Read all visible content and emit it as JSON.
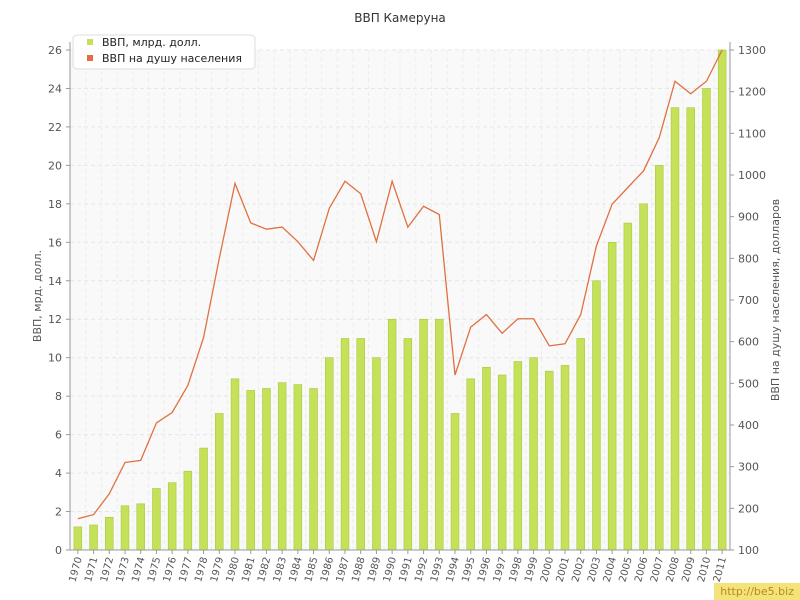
{
  "watermark": "http://be5.biz",
  "chart_data": {
    "type": "bar+line",
    "title": "ВВП Камеруна",
    "ylabel_left": "ВВП, мрд. долл.",
    "ylabel_right": "ВВП на душу населения, долларов",
    "ylim_left": [
      0,
      26
    ],
    "ylim_right": [
      100,
      1300
    ],
    "yticks_left": [
      0,
      2,
      4,
      6,
      8,
      10,
      12,
      14,
      16,
      18,
      20,
      22,
      24,
      26
    ],
    "yticks_right": [
      100,
      200,
      300,
      400,
      500,
      600,
      700,
      800,
      900,
      1000,
      1100,
      1200,
      1300
    ],
    "legend_position": "top-left",
    "grid": true,
    "colors": {
      "bars": "#c5e15a",
      "bars_edge": "#a9c83c",
      "line": "#e07040"
    },
    "categories": [
      "1970",
      "1971",
      "1972",
      "1973",
      "1974",
      "1975",
      "1976",
      "1977",
      "1978",
      "1979",
      "1980",
      "1981",
      "1982",
      "1983",
      "1984",
      "1985",
      "1986",
      "1987",
      "1988",
      "1989",
      "1990",
      "1991",
      "1992",
      "1993",
      "1994",
      "1995",
      "1996",
      "1997",
      "1998",
      "1999",
      "2000",
      "2001",
      "2002",
      "2003",
      "2004",
      "2005",
      "2006",
      "2007",
      "2008",
      "2009",
      "2010",
      "2011"
    ],
    "series": [
      {
        "name": "ВВП, млрд. долл.",
        "type": "bar",
        "axis": "left",
        "values": [
          1.2,
          1.3,
          1.7,
          2.3,
          2.4,
          3.2,
          3.5,
          4.1,
          5.3,
          7.1,
          8.9,
          8.3,
          8.4,
          8.7,
          8.6,
          8.4,
          10,
          11,
          11,
          10,
          12,
          11,
          12,
          12,
          7.1,
          8.9,
          9.5,
          9.1,
          9.8,
          10,
          9.3,
          9.6,
          11,
          14,
          16,
          17,
          18,
          20,
          23,
          23,
          24,
          26
        ]
      },
      {
        "name": "ВВП на душу населения",
        "type": "line",
        "axis": "right",
        "values": [
          175,
          185,
          235,
          310,
          315,
          405,
          430,
          495,
          610,
          800,
          980,
          885,
          870,
          875,
          840,
          795,
          920,
          985,
          955,
          840,
          985,
          875,
          925,
          905,
          520,
          635,
          665,
          620,
          655,
          655,
          590,
          595,
          665,
          830,
          930,
          970,
          1010,
          1090,
          1225,
          1195,
          1225,
          1300
        ]
      }
    ]
  }
}
